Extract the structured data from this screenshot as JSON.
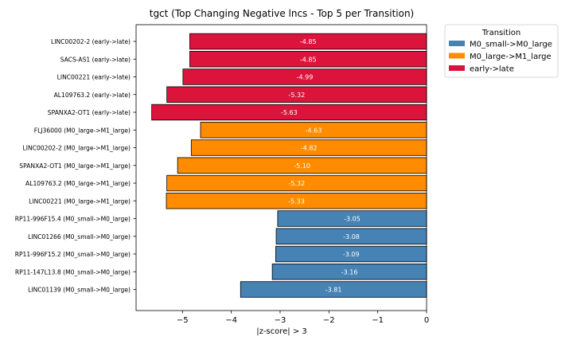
{
  "chart_data": {
    "type": "bar",
    "orientation": "horizontal",
    "title": "tgct (Top Changing Negative lncs - Top 5 per Transition)",
    "xlabel": "|z-score| > 3",
    "ylabel": "",
    "xlim": [
      -5.95,
      0
    ],
    "xticks": [
      -5,
      -4,
      -3,
      -2,
      -1,
      0
    ],
    "xtick_labels": [
      "−5",
      "−4",
      "−3",
      "−2",
      "−1",
      "0"
    ],
    "grid": false,
    "legend": {
      "title": "Transition",
      "position": "upper-right-outside",
      "entries": [
        {
          "label": "M0_small->M0_large",
          "color": "#4682b4"
        },
        {
          "label": "M0_large->M1_large",
          "color": "#ff8c00"
        },
        {
          "label": "early->late",
          "color": "#dc143c"
        }
      ]
    },
    "bars": [
      {
        "category": "LINC00202-2 (early->late)",
        "value": -4.85,
        "label": "-4.85",
        "group": "early->late",
        "color": "#dc143c"
      },
      {
        "category": "SACS-AS1 (early->late)",
        "value": -4.85,
        "label": "-4.85",
        "group": "early->late",
        "color": "#dc143c"
      },
      {
        "category": "LINC00221 (early->late)",
        "value": -4.99,
        "label": "-4.99",
        "group": "early->late",
        "color": "#dc143c"
      },
      {
        "category": "AL109763.2 (early->late)",
        "value": -5.32,
        "label": "-5.32",
        "group": "early->late",
        "color": "#dc143c"
      },
      {
        "category": "SPANXA2-OT1 (early->late)",
        "value": -5.63,
        "label": "-5.63",
        "group": "early->late",
        "color": "#dc143c"
      },
      {
        "category": "FLJ36000 (M0_large->M1_large)",
        "value": -4.63,
        "label": "-4.63",
        "group": "M0_large->M1_large",
        "color": "#ff8c00"
      },
      {
        "category": "LINC00202-2 (M0_large->M1_large)",
        "value": -4.82,
        "label": "-4.82",
        "group": "M0_large->M1_large",
        "color": "#ff8c00"
      },
      {
        "category": "SPANXA2-OT1 (M0_large->M1_large)",
        "value": -5.1,
        "label": "-5.10",
        "group": "M0_large->M1_large",
        "color": "#ff8c00"
      },
      {
        "category": "AL109763.2 (M0_large->M1_large)",
        "value": -5.32,
        "label": "-5.32",
        "group": "M0_large->M1_large",
        "color": "#ff8c00"
      },
      {
        "category": "LINC00221 (M0_large->M1_large)",
        "value": -5.33,
        "label": "-5.33",
        "group": "M0_large->M1_large",
        "color": "#ff8c00"
      },
      {
        "category": "RP11-996F15.4 (M0_small->M0_large)",
        "value": -3.05,
        "label": "-3.05",
        "group": "M0_small->M0_large",
        "color": "#4682b4"
      },
      {
        "category": "LINC01266 (M0_small->M0_large)",
        "value": -3.08,
        "label": "-3.08",
        "group": "M0_small->M0_large",
        "color": "#4682b4"
      },
      {
        "category": "RP11-996F15.2 (M0_small->M0_large)",
        "value": -3.09,
        "label": "-3.09",
        "group": "M0_small->M0_large",
        "color": "#4682b4"
      },
      {
        "category": "RP11-147L13.8 (M0_small->M0_large)",
        "value": -3.16,
        "label": "-3.16",
        "group": "M0_small->M0_large",
        "color": "#4682b4"
      },
      {
        "category": "LINC01139 (M0_small->M0_large)",
        "value": -3.81,
        "label": "-3.81",
        "group": "M0_small->M0_large",
        "color": "#4682b4"
      }
    ]
  }
}
